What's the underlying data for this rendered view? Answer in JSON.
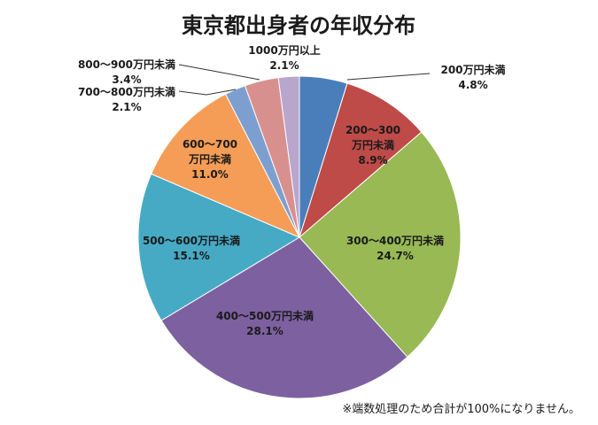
{
  "chart_data": {
    "type": "pie",
    "title": "東京都出身者の年収分布",
    "slices": [
      {
        "label_lines": [
          "200万円未満"
        ],
        "percent": 4.8,
        "value_label": "4.8%",
        "color": "#4a7ebb"
      },
      {
        "label_lines": [
          "200～300",
          "万円未満"
        ],
        "percent": 8.9,
        "value_label": "8.9%",
        "color": "#be4b48"
      },
      {
        "label_lines": [
          "300～400万円未満"
        ],
        "percent": 24.7,
        "value_label": "24.7%",
        "color": "#98b954"
      },
      {
        "label_lines": [
          "400～500万円未満"
        ],
        "percent": 28.1,
        "value_label": "28.1%",
        "color": "#7d60a0"
      },
      {
        "label_lines": [
          "500～600万円未満"
        ],
        "percent": 15.1,
        "value_label": "15.1%",
        "color": "#46aac5"
      },
      {
        "label_lines": [
          "600～700",
          "万円未満"
        ],
        "percent": 11.0,
        "value_label": "11.0%",
        "color": "#f59d56"
      },
      {
        "label_lines": [
          "700～800万円未満"
        ],
        "percent": 2.1,
        "value_label": "2.1%",
        "color": "#7d9fd0"
      },
      {
        "label_lines": [
          "800～900万円未満"
        ],
        "percent": 3.4,
        "value_label": "3.4%",
        "color": "#d8908f"
      },
      {
        "label_lines": [
          "1000万円以上"
        ],
        "percent": 2.1,
        "value_label": "2.1%",
        "color": "#b9a6cc"
      }
    ],
    "footnote": "※端数処理のため合計が100%になりません。"
  }
}
